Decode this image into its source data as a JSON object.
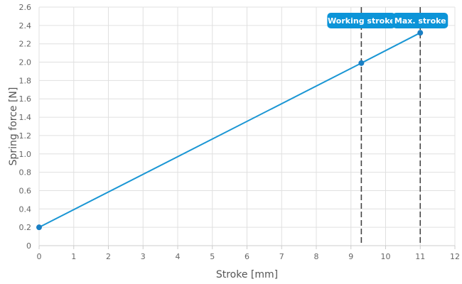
{
  "chart_data": {
    "type": "line",
    "title": "",
    "xlabel": "Stroke [mm]",
    "ylabel": "Spring force [N]",
    "xlim": [
      0,
      12
    ],
    "ylim": [
      0,
      2.6
    ],
    "x_ticks": [
      0,
      1,
      2,
      3,
      4,
      5,
      6,
      7,
      8,
      9,
      10,
      11,
      12
    ],
    "x_tick_labels": [
      "0",
      "1",
      "2",
      "3",
      "4",
      "5",
      "6",
      "7",
      "8",
      "9",
      "10",
      "11",
      "12"
    ],
    "y_ticks": [
      0,
      0.2,
      0.4,
      0.6,
      0.8,
      1.0,
      1.2,
      1.4,
      1.6,
      1.8,
      2.0,
      2.2,
      2.4,
      2.6
    ],
    "y_tick_labels": [
      "0",
      "0.2",
      "0.4",
      "0.6",
      "0.8",
      "1.0",
      "1.2",
      "1.4",
      "1.6",
      "1.8",
      "2.0",
      "2.2",
      "2.4",
      "2.6"
    ],
    "grid": true,
    "legend": "none",
    "series": [
      {
        "color": "#1a96d4",
        "points": [
          {
            "x": 0,
            "y": 0.2
          },
          {
            "x": 9.3,
            "y": 1.99
          },
          {
            "x": 11,
            "y": 2.32
          }
        ]
      }
    ],
    "markers": [
      {
        "label": "Working stroke",
        "x": 9.3,
        "y": 1.99
      },
      {
        "label": "Max. stroke",
        "x": 11,
        "y": 2.32
      }
    ]
  },
  "colors": {
    "series": "#1a96d4",
    "marker_fill": "#1a7fc4",
    "label_bg": "#0c94d8",
    "grid": "#e0e0e0",
    "dashed_line": "#444444"
  }
}
